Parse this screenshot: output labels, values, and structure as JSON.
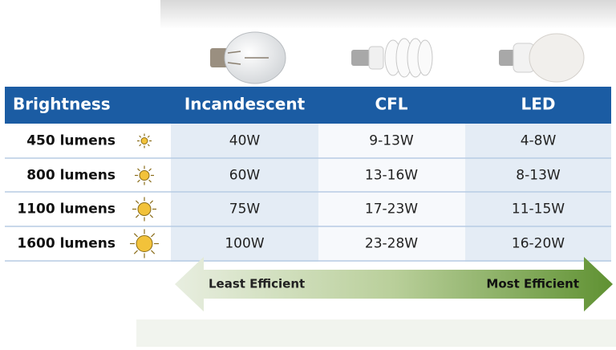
{
  "table": {
    "header": [
      "Brightness",
      "Incandescent",
      "CFL",
      "LED"
    ],
    "rows": [
      [
        "450 lumens",
        "40W",
        "9-13W",
        "4-8W"
      ],
      [
        "800 lumens",
        "60W",
        "13-16W",
        "8-13W"
      ],
      [
        "1100 lumens",
        "75W",
        "17-23W",
        "11-15W"
      ],
      [
        "1600 lumens",
        "100W",
        "23-28W",
        "16-20W"
      ]
    ]
  },
  "arrow": {
    "left": "Least Efficient",
    "right": "Most Efficient"
  }
}
